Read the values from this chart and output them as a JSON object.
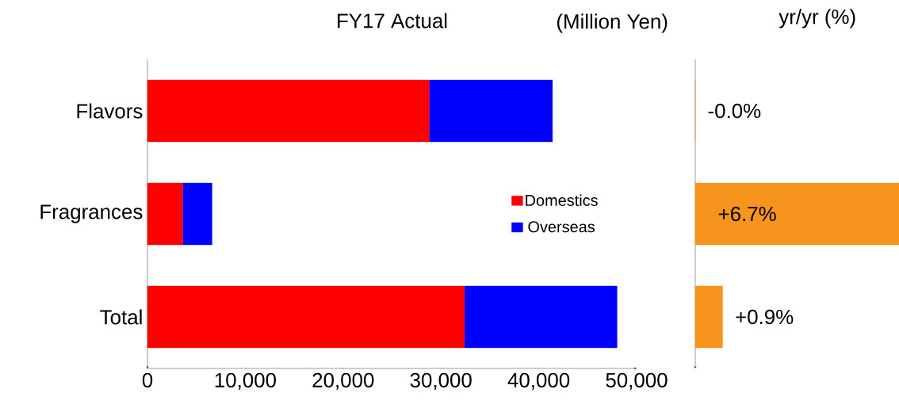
{
  "chart_data": [
    {
      "type": "bar",
      "orientation": "horizontal",
      "stacked": true,
      "title": "FY17 Actual",
      "annotations": [
        "(Million Yen)"
      ],
      "categories": [
        "Flavors",
        "Fragrances",
        "Total"
      ],
      "series": [
        {
          "name": "Domestics",
          "color": "#ff0000",
          "values": [
            28800,
            3600,
            32400
          ]
        },
        {
          "name": "Overseas",
          "color": "#0000ff",
          "values": [
            12600,
            3000,
            15600
          ]
        }
      ],
      "xlim": [
        0,
        50000
      ],
      "xticks": [
        0,
        {
          "value": 10000,
          "label": "10,000"
        },
        {
          "value": 20000,
          "label": "20,000"
        },
        {
          "value": 30000,
          "label": "30,000"
        },
        {
          "value": 40000,
          "label": "40,000"
        },
        {
          "value": 50000,
          "label": "50,000"
        }
      ],
      "legend": "right",
      "grid": false
    },
    {
      "type": "bar",
      "orientation": "horizontal",
      "title": "yr/yr (%)",
      "categories": [
        null,
        null,
        null
      ],
      "values": [
        -0.0,
        6.7,
        0.9
      ],
      "color": "#f7941d",
      "value_labels": [
        "-0.0%",
        "+6.7%",
        "+0.9%"
      ],
      "xlim": [
        0,
        6.7
      ],
      "grid": false
    }
  ]
}
